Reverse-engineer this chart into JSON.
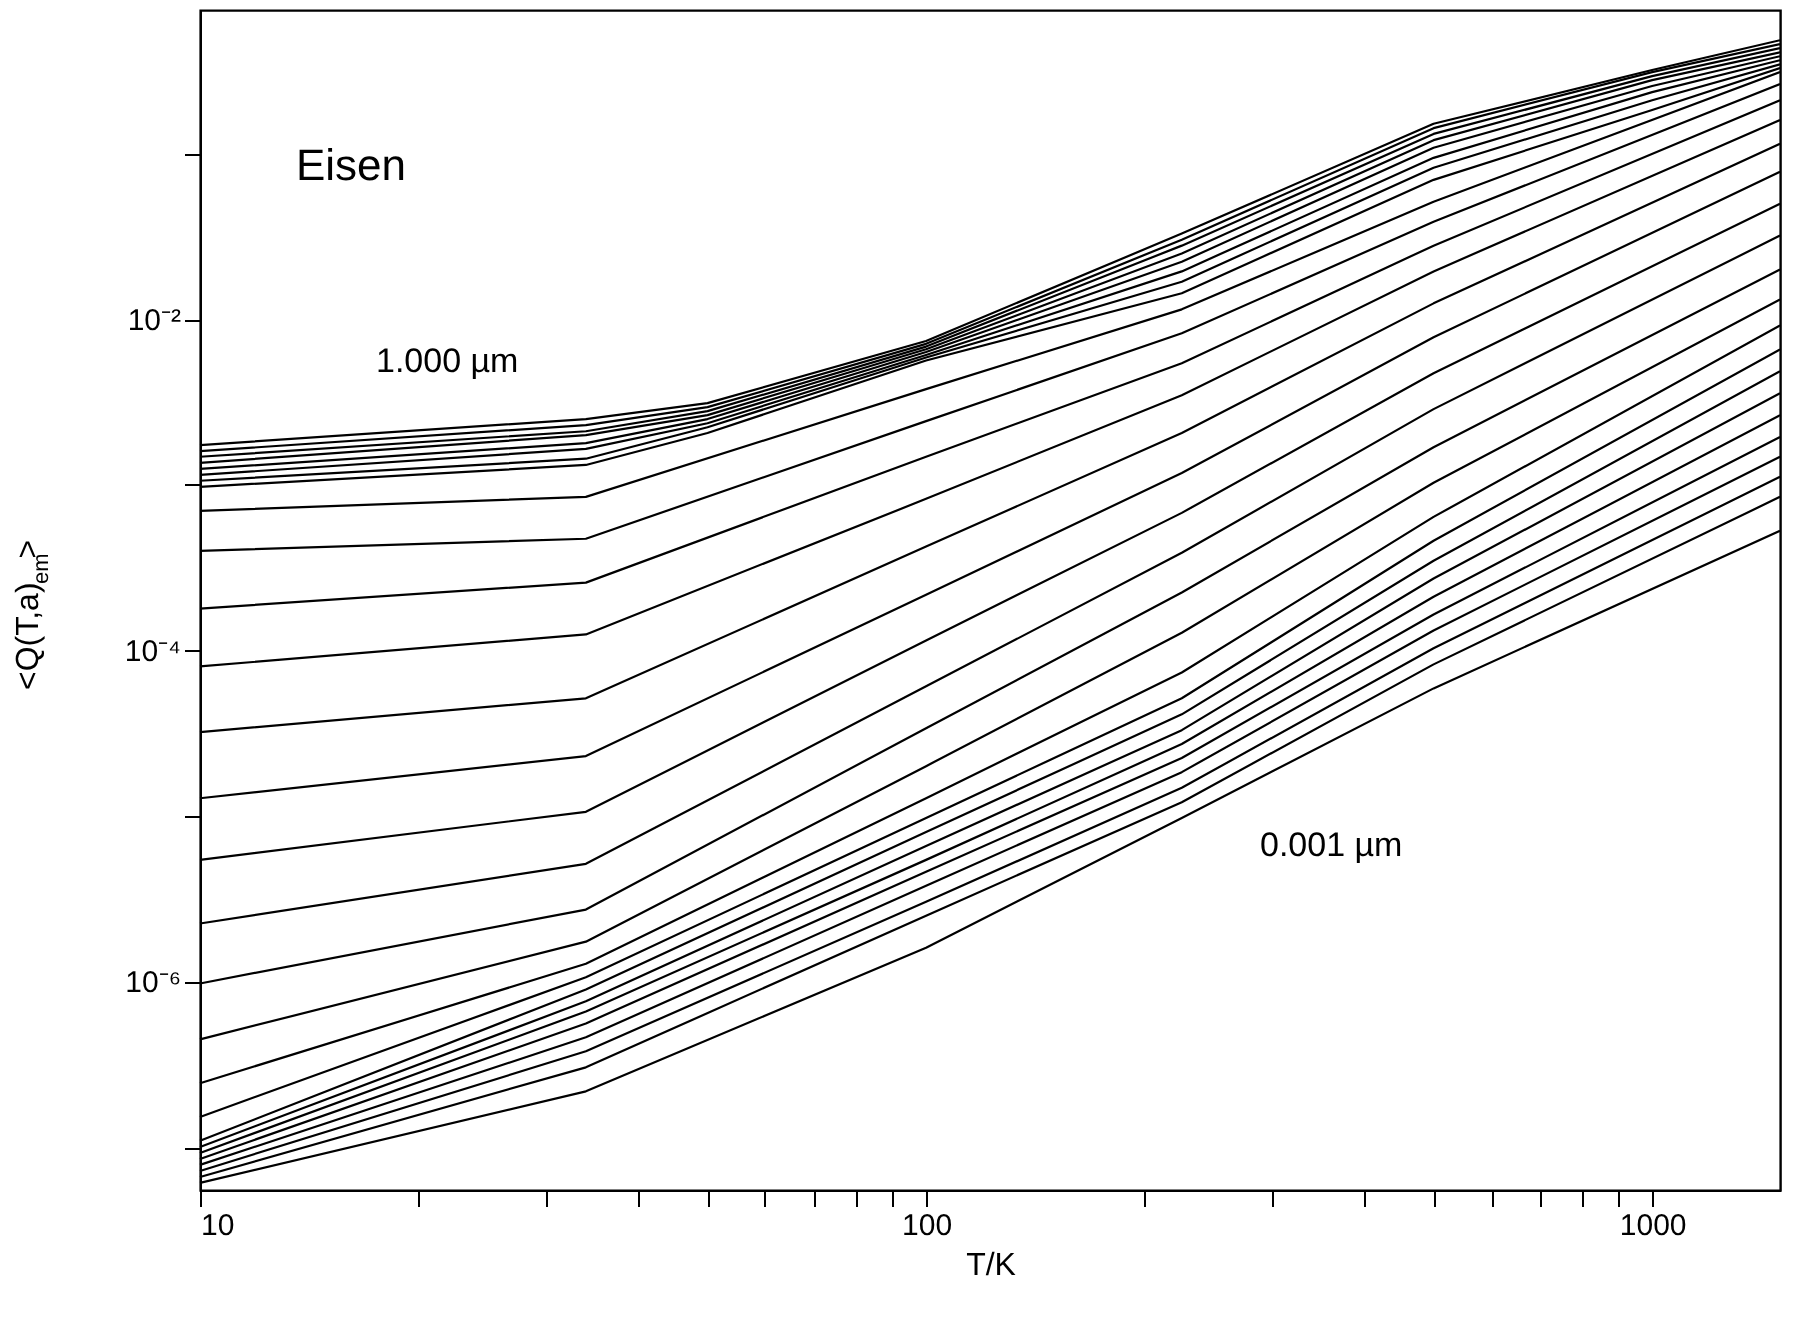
{
  "chart_data": {
    "type": "line",
    "xlabel": "T/K",
    "ylabel": "<Q(T,a)$_{em}$>",
    "log": "xy",
    "grid": false,
    "line_style": "solid",
    "xlim": [
      10,
      1500
    ],
    "ylim": [
      5.5e-08,
      0.74
    ],
    "xticks": [
      10,
      {
        "value": 20,
        "label": null
      },
      {
        "value": 30,
        "label": null
      },
      {
        "value": 40,
        "label": null
      },
      {
        "value": 50,
        "label": null
      },
      {
        "value": 60,
        "label": null
      },
      {
        "value": 70,
        "label": null
      },
      {
        "value": 80,
        "label": null
      },
      {
        "value": 90,
        "label": null
      },
      100,
      {
        "value": 200,
        "label": null
      },
      {
        "value": 300,
        "label": null
      },
      {
        "value": 400,
        "label": null
      },
      {
        "value": 500,
        "label": null
      },
      {
        "value": 600,
        "label": null
      },
      {
        "value": 700,
        "label": null
      },
      {
        "value": 800,
        "label": null
      },
      {
        "value": 900,
        "label": null
      },
      1000
    ],
    "yticks": [
      {
        "value": 0.1,
        "label": null
      },
      {
        "value": 0.01,
        "label": "10⁻²"
      },
      {
        "value": 0.001,
        "label": null
      },
      {
        "value": 0.0001,
        "label": "10⁻⁴"
      },
      {
        "value": 1e-05,
        "label": null
      },
      {
        "value": 1e-06,
        "label": "10⁻⁶"
      },
      {
        "value": 1e-07,
        "label": null
      }
    ],
    "annotations": [
      "Eisen",
      "1.000 µm",
      "0.001 µm"
    ],
    "series": [
      {
        "color": "#000000",
        "x": [
          10,
          34,
          50,
          100,
          225,
          500,
          1000,
          1500
        ],
        "values": [
          0.00174,
          0.0025,
          0.00312,
          0.0074,
          0.033,
          0.152,
          0.321,
          0.486
        ]
      },
      {
        "color": "#000000",
        "x": [
          10,
          34,
          50,
          100,
          225,
          500,
          1000,
          1500
        ],
        "values": [
          0.0016,
          0.0023,
          0.00295,
          0.00712,
          0.0303,
          0.143,
          0.312,
          0.46
        ]
      },
      {
        "color": "#000000",
        "x": [
          10,
          34,
          50,
          100,
          225,
          500,
          1000,
          1500
        ],
        "values": [
          0.00148,
          0.00211,
          0.00279,
          0.00685,
          0.0279,
          0.132,
          0.295,
          0.435
        ]
      },
      {
        "color": "#000000",
        "x": [
          10,
          34,
          50,
          100,
          225,
          500,
          1000,
          1500
        ],
        "values": [
          0.00136,
          0.002,
          0.00264,
          0.0066,
          0.025,
          0.121,
          0.279,
          0.411
        ]
      },
      {
        "color": "#000000",
        "x": [
          10,
          34,
          50,
          100,
          225,
          500,
          1000,
          1500
        ],
        "values": [
          0.00125,
          0.00179,
          0.0025,
          0.00635,
          0.0223,
          0.109,
          0.257,
          0.389
        ]
      },
      {
        "color": "#000000",
        "x": [
          10,
          34,
          50,
          100,
          225,
          500,
          1000,
          1500
        ],
        "values": [
          0.00115,
          0.00165,
          0.00236,
          0.0061,
          0.0195,
          0.0946,
          0.236,
          0.368
        ]
      },
      {
        "color": "#000000",
        "x": [
          10,
          34,
          50,
          100,
          225,
          500,
          1000,
          1500
        ],
        "values": [
          0.00106,
          0.00144,
          0.00223,
          0.00588,
          0.0169,
          0.0824,
          0.211,
          0.348
        ]
      },
      {
        "color": "#000000",
        "x": [
          10,
          34,
          50,
          100,
          225,
          500,
          1000,
          1500
        ],
        "values": [
          0.000973,
          0.00132,
          0.00206,
          0.00565,
          0.0144,
          0.0697,
          0.184,
          0.33
        ]
      },
      {
        "color": "#000000",
        "x": [
          10,
          34,
          100,
          225,
          500,
          1500
        ],
        "values": [
          0.000697,
          0.000847,
          0.00379,
          0.0115,
          0.0514,
          0.312
        ]
      },
      {
        "color": "#000000",
        "x": [
          10,
          34,
          100,
          225,
          500,
          1500
        ],
        "values": [
          0.0004,
          0.000473,
          0.00243,
          0.00824,
          0.0389,
          0.264
        ]
      },
      {
        "color": "#000000",
        "x": [
          10,
          34,
          100,
          225,
          500,
          1500
        ],
        "values": [
          0.000179,
          0.000257,
          0.00148,
          0.00543,
          0.0279,
          0.211
        ]
      },
      {
        "color": "#000000",
        "x": [
          10,
          34,
          100,
          225,
          500,
          1500
        ],
        "values": [
          8.01e-05,
          0.000125,
          0.000824,
          0.00348,
          0.0195,
          0.16
        ]
      },
      {
        "color": "#000000",
        "x": [
          10,
          34,
          100,
          225,
          500,
          1500
        ],
        "values": [
          3.21e-05,
          5.14e-05,
          0.000424,
          0.00206,
          0.0125,
          0.115
        ]
      },
      {
        "color": "#000000",
        "x": [
          10,
          34,
          100,
          225,
          500,
          1500
        ],
        "values": [
          1.28e-05,
          2.3e-05,
          0.000217,
          0.00118,
          0.0078,
          0.078
        ]
      },
      {
        "color": "#000000",
        "x": [
          10,
          34,
          100,
          225,
          500,
          1500
        ],
        "values": [
          5.43e-06,
          1.06e-05,
          0.000115,
          0.000678,
          0.00473,
          0.05
        ]
      },
      {
        "color": "#000000",
        "x": [
          10,
          34,
          100,
          225,
          500,
          1500
        ],
        "values": [
          2.24e-06,
          5.14e-06,
          6.07e-05,
          0.000389,
          0.00287,
          0.0321
        ]
      },
      {
        "color": "#000000",
        "x": [
          10,
          34,
          100,
          225,
          500,
          1500
        ],
        "values": [
          9.73e-07,
          2.72e-06,
          3.39e-05,
          0.000224,
          0.00169,
          0.02
        ]
      },
      {
        "color": "#000000",
        "x": [
          10,
          34,
          100,
          225,
          500,
          1500
        ],
        "values": [
          4.47e-07,
          1.74e-06,
          2e-05,
          0.000128,
          0.00103,
          0.0132
        ]
      },
      {
        "color": "#000000",
        "x": [
          10,
          34,
          100,
          225,
          500,
          1500
        ],
        "values": [
          2.43e-07,
          1.28e-06,
          1.28e-05,
          7.36e-05,
          0.000641,
          0.0092
        ]
      },
      {
        "color": "#000000",
        "x": [
          10,
          34,
          100,
          225,
          500,
          1500
        ],
        "values": [
          1.52e-07,
          1.06e-06,
          9.73e-06,
          5.14e-05,
          0.00046,
          0.00659
        ]
      },
      {
        "color": "#000000",
        "x": [
          10,
          34,
          100,
          225,
          500,
          1500
        ],
        "values": [
          1.09e-07,
          8.95e-07,
          8.01e-06,
          4.11e-05,
          0.000348,
          0.00486
        ]
      },
      {
        "color": "#000000",
        "x": [
          10,
          34,
          100,
          225,
          500,
          1500
        ],
        "values": [
          1e-07,
          7.59e-07,
          6.59e-06,
          3.3e-05,
          0.000272,
          0.00358
        ]
      },
      {
        "color": "#000000",
        "x": [
          10,
          34,
          100,
          225,
          500,
          1500
        ],
        "values": [
          9.2e-08,
          6.59e-07,
          5.43e-06,
          2.72e-05,
          0.000211,
          0.00264
        ]
      },
      {
        "color": "#000000",
        "x": [
          10,
          34,
          100,
          225,
          500,
          1500
        ],
        "values": [
          8.47e-08,
          5.58e-07,
          4.6e-06,
          2.24e-05,
          0.000165,
          0.00195
        ]
      },
      {
        "color": "#000000",
        "x": [
          10,
          34,
          100,
          225,
          500,
          1500
        ],
        "values": [
          7.8e-08,
          4.6e-07,
          3.79e-06,
          1.84e-05,
          0.000132,
          0.00148
        ]
      },
      {
        "color": "#000000",
        "x": [
          10,
          34,
          100,
          225,
          500,
          1500
        ],
        "values": [
          7.17e-08,
          3.79e-07,
          3.03e-06,
          1.48e-05,
          0.000103,
          0.00112
        ]
      },
      {
        "color": "#000000",
        "x": [
          10,
          34,
          100,
          225,
          500,
          1500
        ],
        "values": [
          6.59e-08,
          3.03e-07,
          2.5e-06,
          1.21e-05,
          8.24e-05,
          0.000847
        ]
      },
      {
        "color": "#000000",
        "x": [
          10,
          34,
          100,
          225,
          500,
          1500
        ],
        "values": [
          6.07e-08,
          2.17e-07,
          1.6e-06,
          9.73e-06,
          5.9e-05,
          0.000528
        ]
      }
    ]
  }
}
